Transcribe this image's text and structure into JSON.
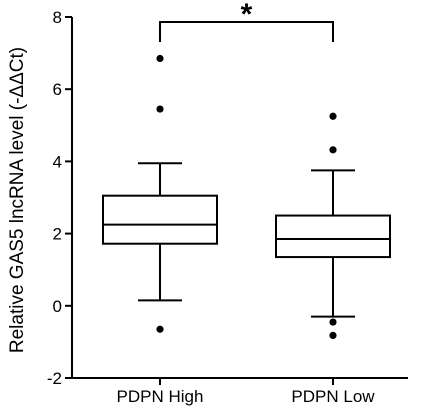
{
  "chart_data": {
    "type": "boxplot",
    "title": "",
    "xlabel": "",
    "ylabel": "Relative GAS5 lncRNA level (-ΔΔCt)",
    "ylim": [
      -2,
      8
    ],
    "yticks": [
      -2,
      0,
      2,
      4,
      6,
      8
    ],
    "grid": false,
    "legend": "none",
    "categories": [
      "PDPN High",
      "PDPN Low"
    ],
    "series": [
      {
        "category": "PDPN High",
        "whisker_low": 0.15,
        "q1": 1.72,
        "median": 2.25,
        "q3": 3.05,
        "whisker_high": 3.95,
        "outliers": [
          -0.65,
          5.45,
          6.85
        ]
      },
      {
        "category": "PDPN Low",
        "whisker_low": -0.3,
        "q1": 1.35,
        "median": 1.85,
        "q3": 2.5,
        "whisker_high": 3.75,
        "outliers": [
          -0.45,
          -0.82,
          4.32,
          5.25
        ]
      }
    ],
    "annotations": [
      {
        "text": "*",
        "between": [
          "PDPN High",
          "PDPN Low"
        ]
      }
    ]
  },
  "colors": {
    "ink": "#000000",
    "background": "#ffffff"
  }
}
